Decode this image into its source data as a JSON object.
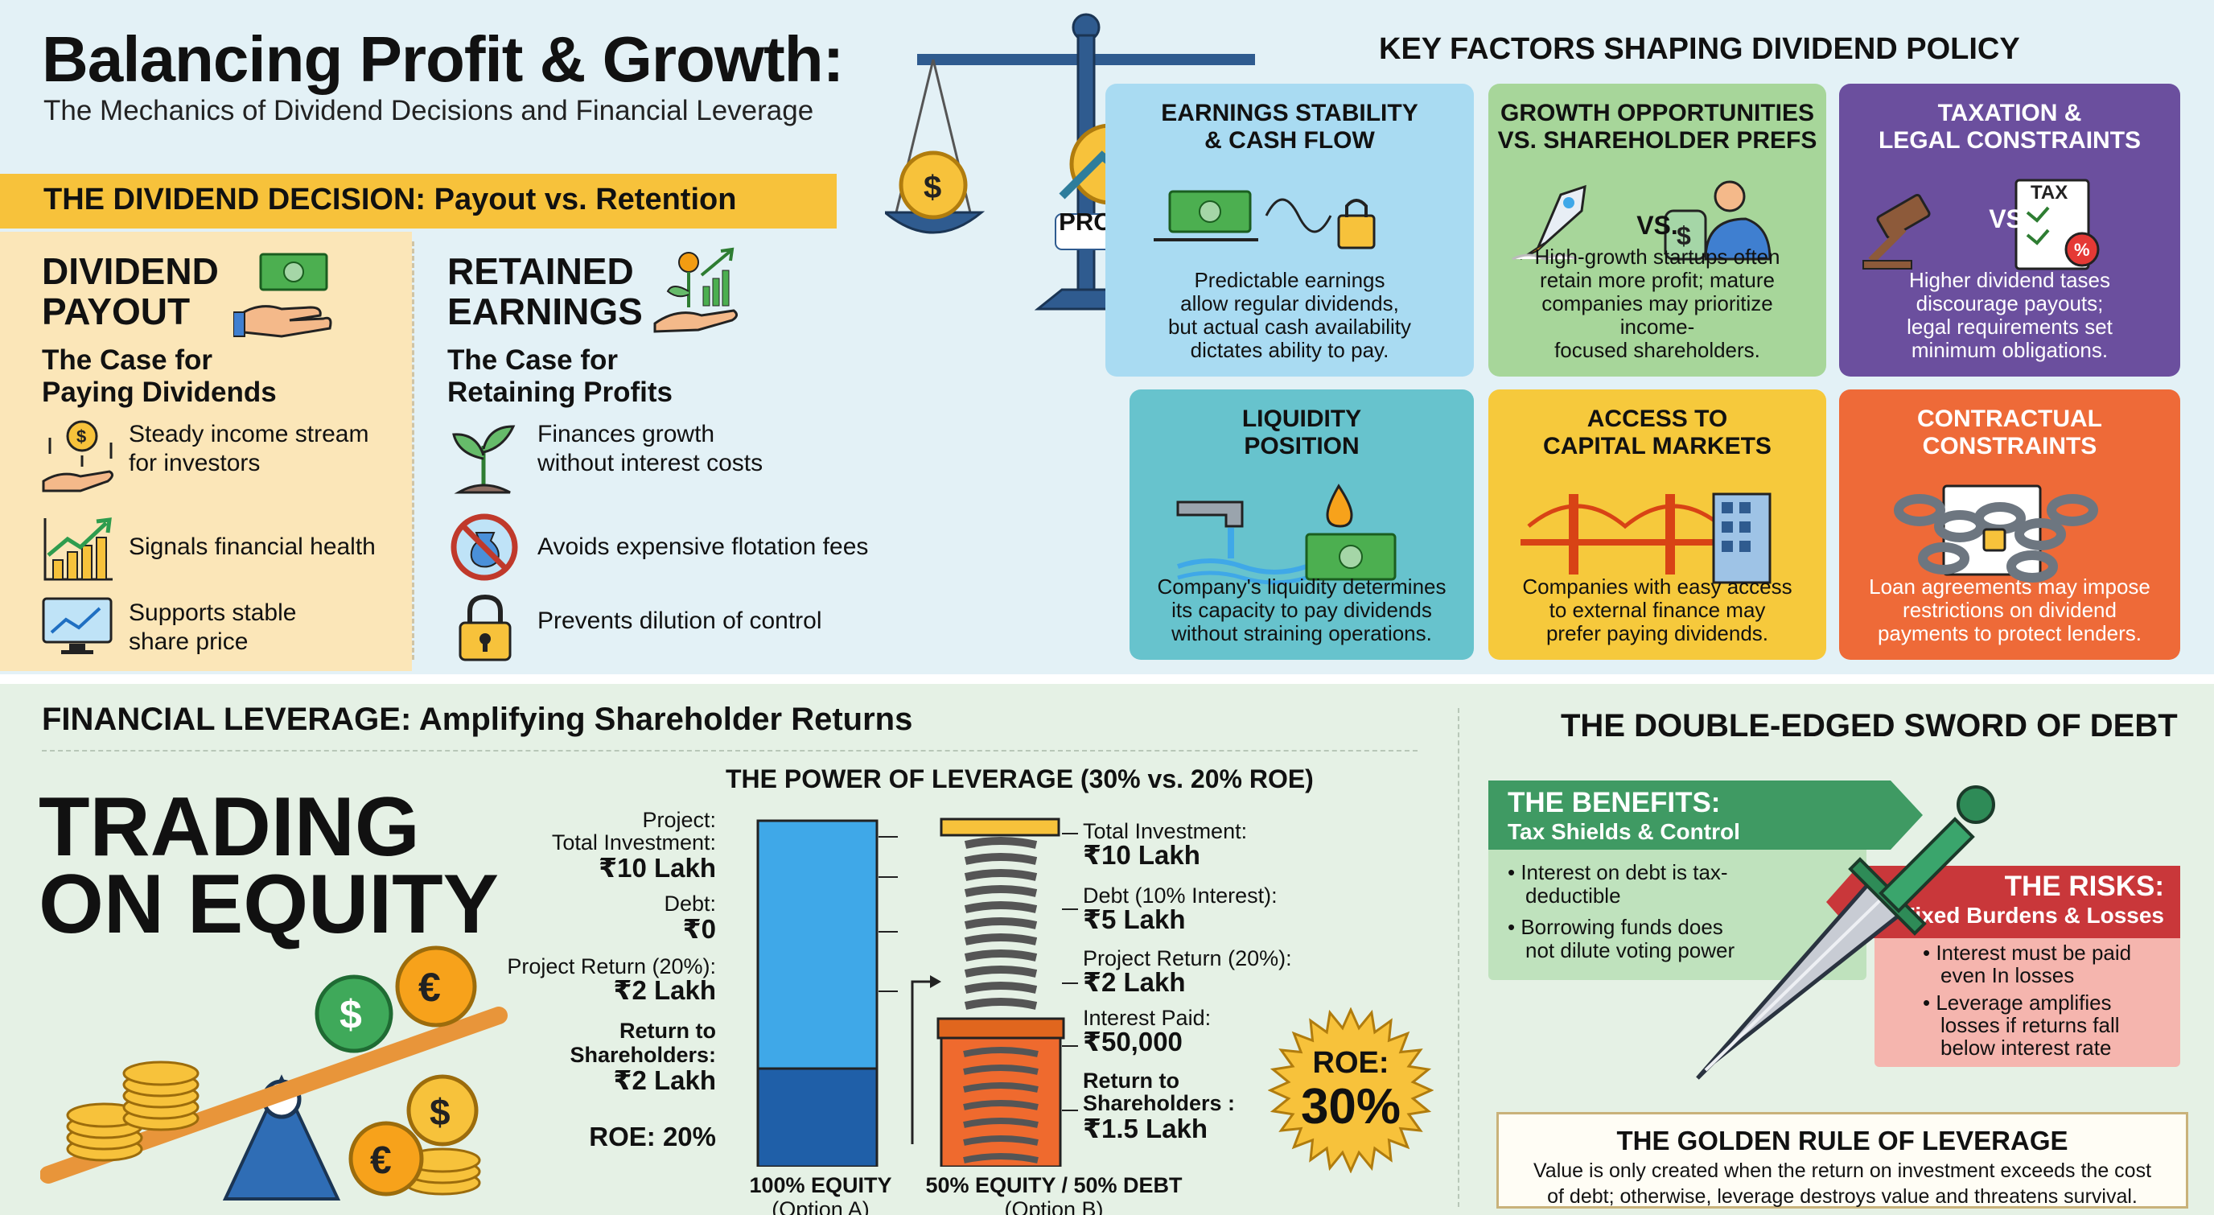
{
  "header": {
    "title": "Balancing Profit & Growth:",
    "subtitle": "The Mechanics of Dividend Decisions and Financial Leverage"
  },
  "dividend_decision": {
    "bar_title": "THE DIVIDEND DECISION: Payout vs. Retention",
    "payout": {
      "heading_line1": "DIVIDEND",
      "heading_line2": "PAYOUT",
      "sub_line1": "The Case for",
      "sub_line2": "Paying Dividends",
      "points": [
        {
          "line1": "Steady income stream",
          "line2": "for investors"
        },
        {
          "line1": "Signals financial health",
          "line2": ""
        },
        {
          "line1": "Supports stable",
          "line2": "share price"
        }
      ]
    },
    "retain": {
      "heading_line1": "RETAINED",
      "heading_line2": "EARNINGS",
      "sub_line1": "The Case for",
      "sub_line2": "Retaining Profits",
      "points": [
        {
          "line1": "Finances growth",
          "line2": "without interest costs"
        },
        {
          "line1": "Avoids expensive flotation fees",
          "line2": ""
        },
        {
          "line1": "Prevents dilution of control",
          "line2": ""
        }
      ]
    },
    "scale_label": "PROFIT"
  },
  "factors": {
    "title": "KEY FACTORS SHAPING DIVIDEND POLICY",
    "cards": [
      {
        "title1": "EARNINGS STABILITY",
        "title2": "& CASH FLOW",
        "text": [
          "Predictable earnings",
          "allow regular dividends,",
          "but actual cash availability",
          "dictates ability to pay."
        ],
        "bg": "#a9dbf2",
        "fg": "#111111"
      },
      {
        "title1": "GROWTH OPPORTUNITIES",
        "title2": "VS. SHAREHOLDER PREFS",
        "text": [
          "High-growth startups often",
          "retain more profit; mature",
          "companies may prioritize income-",
          "focused shareholders."
        ],
        "bg": "#a7d69a",
        "fg": "#111111",
        "vs": "VS."
      },
      {
        "title1": "TAXATION &",
        "title2": "LEGAL CONSTRAINTS",
        "text": [
          "Higher dividend tases",
          "discourage payouts;",
          "legal requirements set",
          "minimum obligations."
        ],
        "bg": "#6b4f9e",
        "fg": "#ffffff",
        "vs": "VS.",
        "doc": "TAX"
      },
      {
        "title1": "LIQUIDITY",
        "title2": "POSITION",
        "text": [
          "Company's liquidity determines",
          "its capacity to pay dividends",
          "without straining operations."
        ],
        "bg": "#67c3cd",
        "fg": "#111111"
      },
      {
        "title1": "ACCESS TO",
        "title2": "CAPITAL MARKETS",
        "text": [
          "Companies with easy access",
          "to external finance may",
          "prefer paying dividends."
        ],
        "bg": "#f6c93c",
        "fg": "#111111"
      },
      {
        "title1": "CONTRACTUAL",
        "title2": "CONSTRAINTS",
        "text": [
          "Loan agreements may impose",
          "restrictions on dividend",
          "payments to protect lenders."
        ],
        "bg": "#ee6a38",
        "fg": "#ffffff"
      }
    ]
  },
  "leverage": {
    "title": "FINANCIAL LEVERAGE: Amplifying Shareholder Returns",
    "trading_line1": "TRADING",
    "trading_line2": "ON EQUITY",
    "power_title": "THE POWER OF LEVERAGE (30% vs. 20% ROE)",
    "option_a": {
      "project_label": "Project:",
      "investment_label": "Total Investment:",
      "investment_value": "₹10 Lakh",
      "debt_label": "Debt:",
      "debt_value": "₹0",
      "return_label": "Project Return (20%):",
      "return_value": "₹2 Lakh",
      "sh_label1": "Return to",
      "sh_label2": "Shareholders:",
      "sh_value": "₹2 Lakh",
      "roe": "ROE: 20%",
      "caption1": "100% EQUITY",
      "caption2": "(Option A)"
    },
    "option_b": {
      "investment_label": "Total Investment:",
      "investment_value": "₹10 Lakh",
      "debt_label": "Debt (10% Interest):",
      "debt_value": "₹5 Lakh",
      "return_label": "Project Return (20%):",
      "return_value": "₹2 Lakh",
      "interest_label": "Interest Paid:",
      "interest_value": "₹50,000",
      "sh_label1": "Return to",
      "sh_label2": "Shareholders :",
      "sh_value": "₹1.5 Lakh",
      "caption1": "50% EQUITY / 50% DEBT",
      "caption2": "(Option B)"
    },
    "roe_badge_label": "ROE:",
    "roe_badge_value": "30%"
  },
  "debt": {
    "title": "THE DOUBLE-EDGED SWORD OF DEBT",
    "benefits": {
      "title": "THE BENEFITS:",
      "subtitle": "Tax Shields & Control",
      "points": [
        {
          "line1": "Interest on debt is tax-",
          "line2": "deductible"
        },
        {
          "line1": "Borrowing funds does",
          "line2": "not dilute voting power"
        }
      ]
    },
    "risks": {
      "title": "THE RISKS:",
      "subtitle": "Fixed Burdens & Losses",
      "points": [
        {
          "line1": "Interest must be paid",
          "line2": "even In losses",
          "line3": ""
        },
        {
          "line1": "Leverage amplifies",
          "line2": "losses if returns fall",
          "line3": "below interest rate"
        }
      ]
    },
    "golden": {
      "title": "THE GOLDEN RULE OF LEVERAGE",
      "line1": "Value is only created when the return on investment exceeds the cost",
      "line2": "of debt; otherwise, leverage destroys value and threatens survival."
    }
  },
  "colors": {
    "accent_yellow": "#f7c23b",
    "benefit_green": "#3f9a63",
    "risk_red": "#c9373a",
    "equity_blue": "#3fa8e8",
    "debt_orange": "#ef6a2e"
  }
}
